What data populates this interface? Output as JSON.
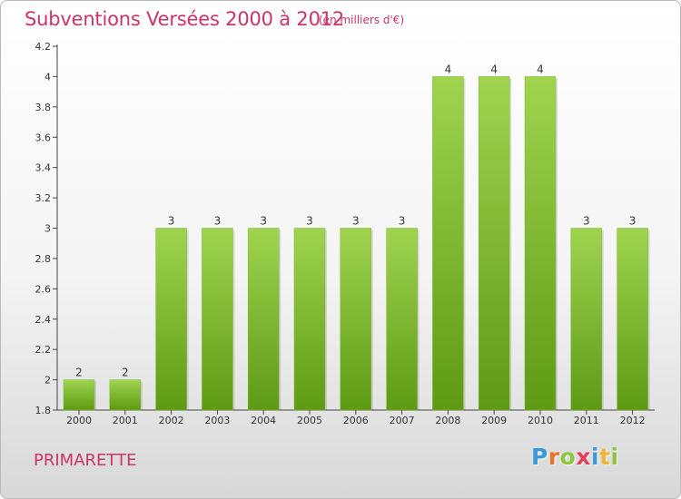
{
  "header": {
    "title": "Subventions Versées 2000 à 2012",
    "unit_note": "(en milliers d'€)"
  },
  "footer": {
    "commune": "PRIMARETTE",
    "brand_letters": [
      "P",
      "r",
      "o",
      "x",
      "i",
      "t",
      "i"
    ],
    "brand_colors": [
      "#3a9ad9",
      "#e8732a",
      "#8cc63f",
      "#e83a5a",
      "#3a9ad9",
      "#f2b233",
      "#8cc63f"
    ]
  },
  "colors": {
    "title": "#cc3366",
    "bar_top": "#9fd44f",
    "bar_bottom": "#5e9a14",
    "axis": "#444444"
  },
  "chart_data": {
    "type": "bar",
    "categories": [
      "2000",
      "2001",
      "2002",
      "2003",
      "2004",
      "2005",
      "2006",
      "2007",
      "2008",
      "2009",
      "2010",
      "2011",
      "2012"
    ],
    "values": [
      2,
      2,
      3,
      3,
      3,
      3,
      3,
      3,
      4,
      4,
      4,
      3,
      3
    ],
    "data_labels": [
      "2",
      "2",
      "3",
      "3",
      "3",
      "3",
      "3",
      "3",
      "4",
      "4",
      "4",
      "3",
      "3"
    ],
    "yticks": [
      "1.8",
      "2",
      "2.2",
      "2.4",
      "2.6",
      "2.8",
      "3",
      "3.2",
      "3.4",
      "3.6",
      "3.8",
      "4",
      "4.2"
    ],
    "ylim": [
      1.8,
      4.2
    ],
    "grid": false
  }
}
